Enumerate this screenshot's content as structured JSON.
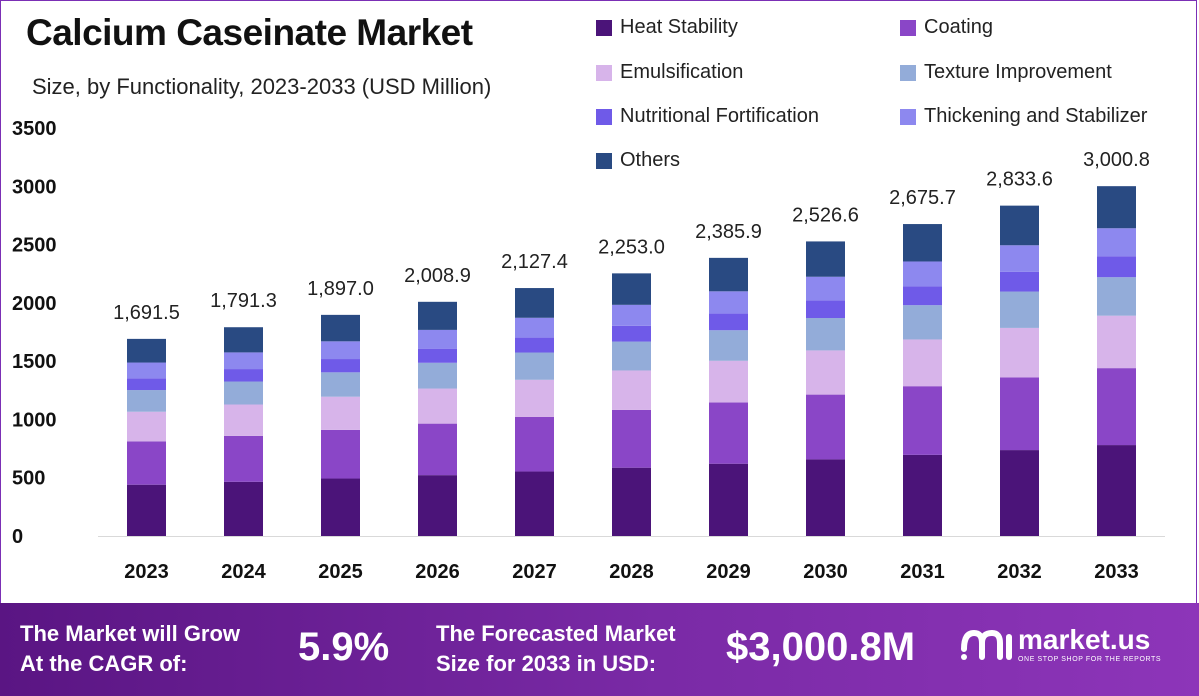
{
  "header": {
    "title": "Calcium Caseinate Market",
    "subtitle": "Size, by Functionality, 2023-2033 (USD Million)"
  },
  "chart_data": {
    "type": "bar",
    "stacked": true,
    "title": "Calcium Caseinate Market",
    "subtitle": "Size, by Functionality, 2023-2033 (USD Million)",
    "xlabel": "",
    "ylabel": "",
    "ylim": [
      0,
      3500
    ],
    "yticks": [
      "0",
      "500",
      "1000",
      "1500",
      "2000",
      "2500",
      "3000",
      "3500"
    ],
    "ytick_values": [
      0,
      500,
      1000,
      1500,
      2000,
      2500,
      3000,
      3500
    ],
    "grid": false,
    "legend_position": "top-right",
    "categories": [
      "2023",
      "2024",
      "2025",
      "2026",
      "2027",
      "2028",
      "2029",
      "2030",
      "2031",
      "2032",
      "2033"
    ],
    "totals": [
      1691.5,
      1791.3,
      1897.0,
      2008.9,
      2127.4,
      2253.0,
      2385.9,
      2526.6,
      2675.7,
      2833.6,
      3000.8
    ],
    "total_labels": [
      "1,691.5",
      "1,791.3",
      "1,897.0",
      "2,008.9",
      "2,127.4",
      "2,253.0",
      "2,385.9",
      "2,526.6",
      "2,675.7",
      "2,833.6",
      "3,000.8"
    ],
    "series": [
      {
        "name": "Heat Stability",
        "color": "#4b1479",
        "values": [
          440,
          465,
          493,
          522,
          553,
          586,
          620,
          657,
          696,
          737,
          780
        ]
      },
      {
        "name": "Coating",
        "color": "#8a46c7",
        "values": [
          372,
          394,
          417,
          442,
          468,
          496,
          525,
          556,
          589,
          623,
          660
        ]
      },
      {
        "name": "Emulsification",
        "color": "#d7b4ea",
        "values": [
          254,
          269,
          285,
          301,
          319,
          338,
          358,
          379,
          401,
          425,
          450
        ]
      },
      {
        "name": "Texture Improvement",
        "color": "#93acd9",
        "values": [
          186,
          197,
          209,
          221,
          234,
          248,
          262,
          278,
          294,
          312,
          330
        ]
      },
      {
        "name": "Nutritional Fortification",
        "color": "#6f5ae8",
        "values": [
          101,
          107,
          114,
          121,
          128,
          135,
          143,
          152,
          161,
          170,
          180
        ]
      },
      {
        "name": "Thickening and Stabilizer",
        "color": "#8d88ef",
        "values": [
          135,
          143,
          152,
          161,
          170,
          180,
          191,
          202,
          214,
          227,
          240
        ]
      },
      {
        "name": "Others",
        "color": "#294a82",
        "values": [
          203,
          216,
          227,
          241,
          255,
          270,
          287,
          303,
          321,
          340,
          361
        ]
      }
    ]
  },
  "footer": {
    "cagr_label_line1": "The Market will Grow",
    "cagr_label_line2": "At the CAGR of:",
    "cagr_value": "5.9%",
    "forecast_label_line1": "The Forecasted Market",
    "forecast_label_line2": "Size for 2033 in USD:",
    "forecast_value": "$3,000.8M",
    "brand_name": "market.us",
    "brand_tagline": "ONE STOP SHOP FOR THE REPORTS"
  }
}
